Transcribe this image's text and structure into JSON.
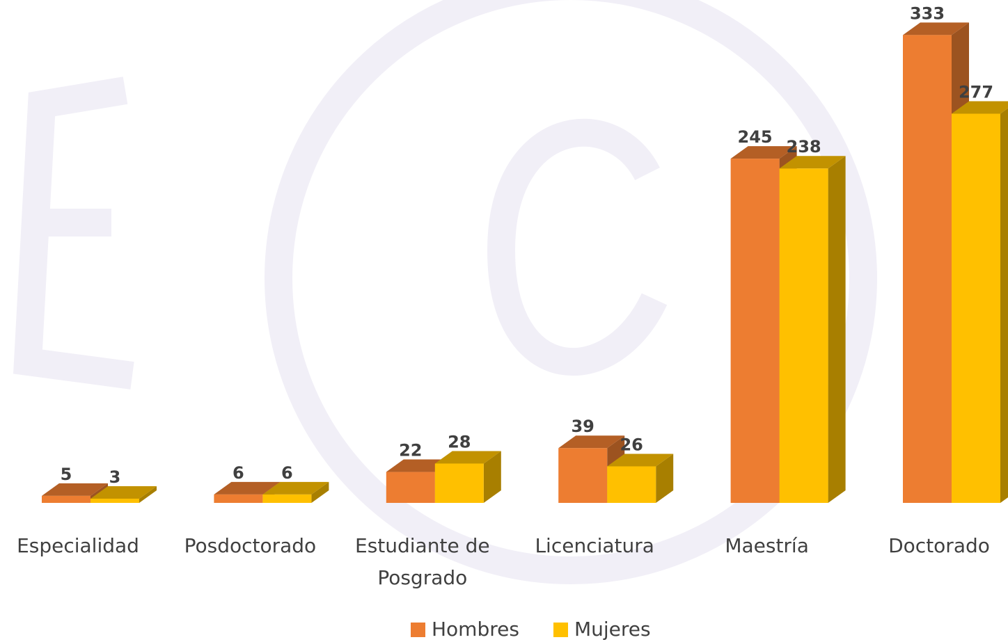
{
  "chart_data": {
    "type": "bar3d",
    "categories": [
      "Especialidad",
      "Posdoctorado",
      "Estudiante de Posgrado",
      "Licenciatura",
      "Maestría",
      "Doctorado"
    ],
    "series": [
      {
        "name": "Hombres",
        "color": "#ED7D31",
        "values": [
          5,
          6,
          22,
          39,
          245,
          333
        ]
      },
      {
        "name": "Mujeres",
        "color": "#FFC000",
        "values": [
          3,
          6,
          28,
          26,
          238,
          277
        ]
      }
    ],
    "legend": "bottom"
  }
}
